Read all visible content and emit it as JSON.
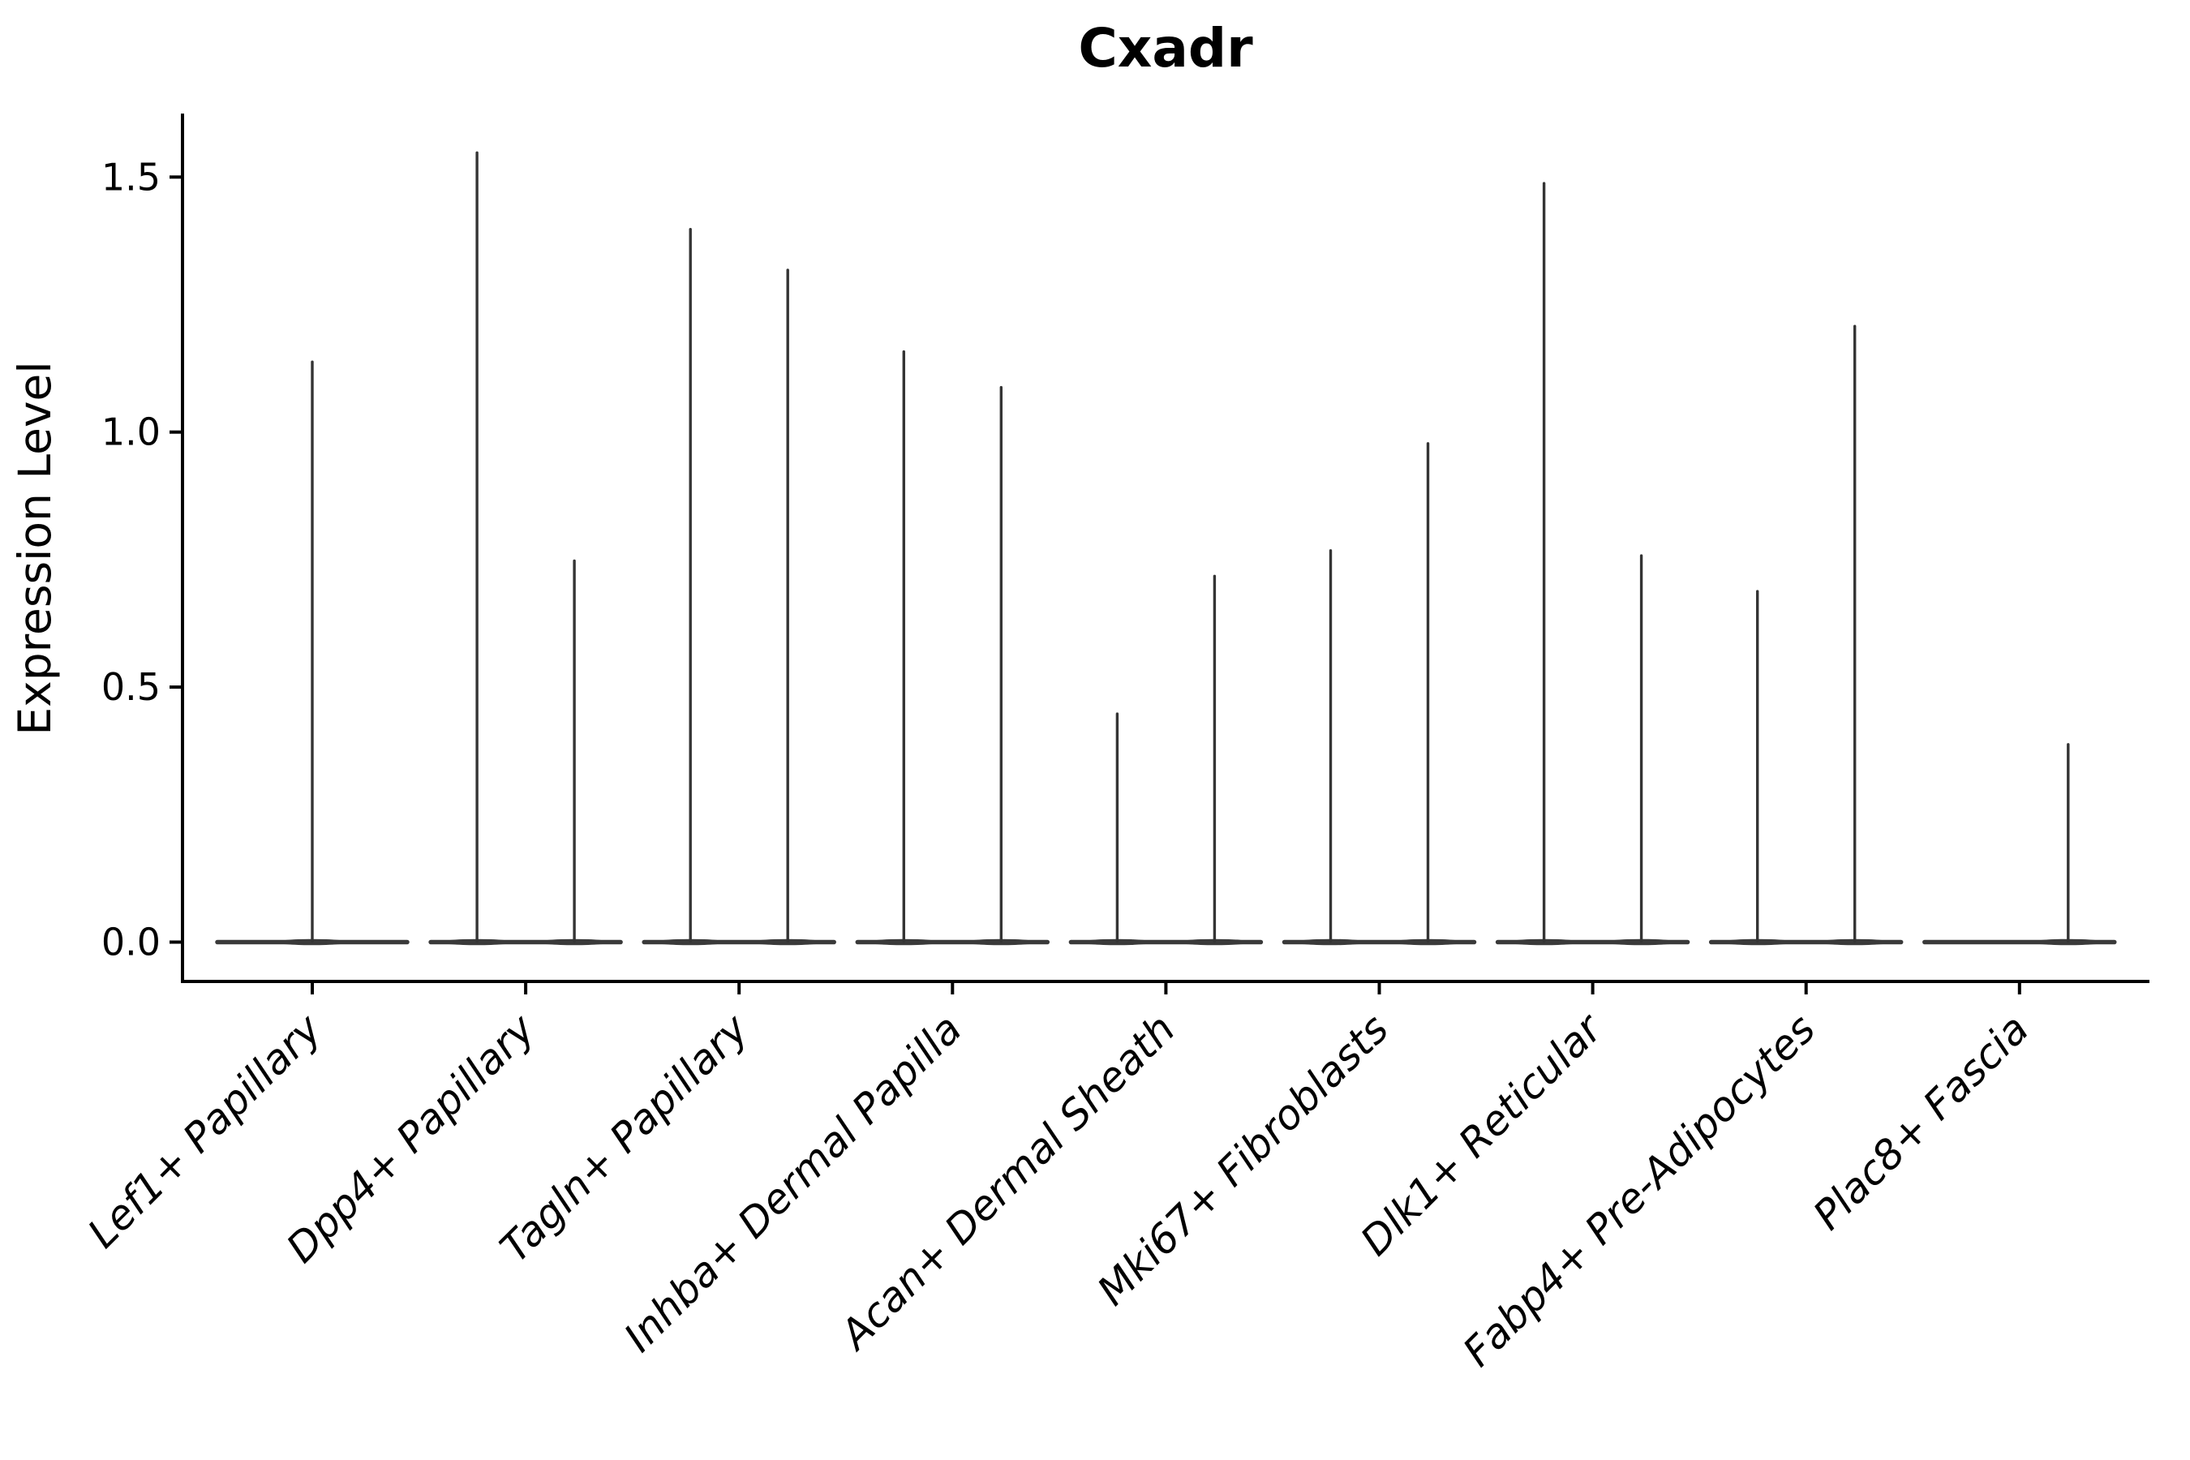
{
  "chart_data": {
    "type": "violin",
    "title": "Cxadr",
    "ylabel": "Expression Level",
    "xlabel": "",
    "ylim": [
      -0.077,
      1.625
    ],
    "grid": false,
    "legend": "none",
    "yticks": [
      {
        "value": 0.0,
        "label": "0.0"
      },
      {
        "value": 0.5,
        "label": "0.5"
      },
      {
        "value": 1.0,
        "label": "1.0"
      },
      {
        "value": 1.5,
        "label": "1.5"
      }
    ],
    "categories": [
      "Lef1+ Papillary",
      "Dpp4+ Papillary",
      "Tagln+ Papillary",
      "Inhba+ Dermal Papilla",
      "Acan+ Dermal Sheath",
      "Mki67+ Fibroblasts",
      "Dlk1+ Reticular",
      "Fabp4+ Pre-Adipocytes",
      "Plac8+ Fascia"
    ],
    "series": [
      {
        "category": "Lef1+ Papillary",
        "spikes": [
          {
            "pos": "center",
            "max": 1.14
          }
        ]
      },
      {
        "category": "Dpp4+ Papillary",
        "spikes": [
          {
            "pos": "left",
            "max": 1.55
          },
          {
            "pos": "right",
            "max": 0.75
          }
        ]
      },
      {
        "category": "Tagln+ Papillary",
        "spikes": [
          {
            "pos": "left",
            "max": 1.4
          },
          {
            "pos": "right",
            "max": 1.32
          }
        ]
      },
      {
        "category": "Inhba+ Dermal Papilla",
        "spikes": [
          {
            "pos": "left",
            "max": 1.16
          },
          {
            "pos": "right",
            "max": 1.09
          }
        ]
      },
      {
        "category": "Acan+ Dermal Sheath",
        "spikes": [
          {
            "pos": "left",
            "max": 0.45
          },
          {
            "pos": "right",
            "max": 0.72
          }
        ]
      },
      {
        "category": "Mki67+ Fibroblasts",
        "spikes": [
          {
            "pos": "left",
            "max": 0.77
          },
          {
            "pos": "right",
            "max": 0.98
          }
        ]
      },
      {
        "category": "Dlk1+ Reticular",
        "spikes": [
          {
            "pos": "left",
            "max": 1.49
          },
          {
            "pos": "right",
            "max": 0.76
          }
        ]
      },
      {
        "category": "Fabp4+ Pre-Adipocytes",
        "spikes": [
          {
            "pos": "left",
            "max": 0.69
          },
          {
            "pos": "right",
            "max": 1.21
          }
        ]
      },
      {
        "category": "Plac8+ Fascia",
        "spikes": [
          {
            "pos": "right",
            "max": 0.39
          }
        ]
      }
    ],
    "colors": {
      "violin": "#3a3a3a",
      "spike": "#343434",
      "axis": "#000000",
      "text": "#000000",
      "background": "#ffffff"
    }
  }
}
